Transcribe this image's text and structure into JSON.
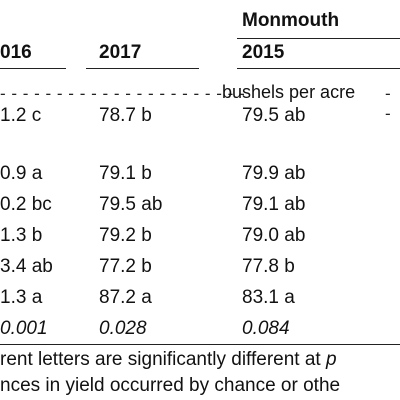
{
  "header": {
    "location": "Monmouth",
    "columns": [
      "016",
      "2017",
      "2015"
    ]
  },
  "units_row": {
    "dashes_left": "- - - - - - - - - - - - - - - - - - - - - -",
    "label": "bushels per acre",
    "dashes_right": "- -"
  },
  "rows": [
    [
      "1.2 c",
      "78.7 b",
      "79.5 ab"
    ],
    [
      "0.9 a",
      "79.1 b",
      "79.9 ab"
    ],
    [
      "0.2 bc",
      "79.5 ab",
      "79.1 ab"
    ],
    [
      "1.3 b",
      "79.2 b",
      "79.0 ab"
    ],
    [
      "3.4 ab",
      "77.2 b",
      "77.8 b"
    ],
    [
      "1.3 a",
      "87.2 a",
      "83.1 a"
    ]
  ],
  "p_values": [
    "0.001",
    "0.028",
    "0.084"
  ],
  "footnotes": {
    "line1_prefix": "rent letters are significantly different at ",
    "line1_italic": "p",
    "line2": "nces in yield occurred by chance or othe"
  }
}
